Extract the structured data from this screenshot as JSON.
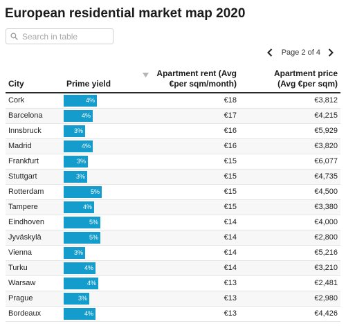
{
  "title": "European residential market map 2020",
  "search": {
    "placeholder": "Search in table",
    "value": ""
  },
  "pager": {
    "label": "Page 2 of 4"
  },
  "columns": {
    "city": "City",
    "yield": "Prime yield",
    "rent_line1": "Apartment rent (Avg",
    "rent_line2": "€per sqm/month)",
    "price_line1": "Apartment price",
    "price_line2": "(Avg €per sqm)"
  },
  "colors": {
    "bar": "#149ccc"
  },
  "rows": [
    {
      "city": "Cork",
      "yield": "4%",
      "yield_value": 4.1,
      "rent": "€18",
      "price": "€3,812"
    },
    {
      "city": "Barcelona",
      "yield": "4%",
      "yield_value": 3.6,
      "rent": "€17",
      "price": "€4,215"
    },
    {
      "city": "Innsbruck",
      "yield": "3%",
      "yield_value": 2.7,
      "rent": "€16",
      "price": "€5,929"
    },
    {
      "city": "Madrid",
      "yield": "4%",
      "yield_value": 3.6,
      "rent": "€16",
      "price": "€3,820"
    },
    {
      "city": "Frankfurt",
      "yield": "3%",
      "yield_value": 3.0,
      "rent": "€15",
      "price": "€6,077"
    },
    {
      "city": "Stuttgart",
      "yield": "3%",
      "yield_value": 2.9,
      "rent": "€15",
      "price": "€4,735"
    },
    {
      "city": "Rotterdam",
      "yield": "5%",
      "yield_value": 4.7,
      "rent": "€15",
      "price": "€4,500"
    },
    {
      "city": "Tampere",
      "yield": "4%",
      "yield_value": 3.8,
      "rent": "€15",
      "price": "€3,380"
    },
    {
      "city": "Eindhoven",
      "yield": "5%",
      "yield_value": 4.6,
      "rent": "€14",
      "price": "€4,000"
    },
    {
      "city": "Jyväskylä",
      "yield": "5%",
      "yield_value": 4.6,
      "rent": "€14",
      "price": "€2,800"
    },
    {
      "city": "Vienna",
      "yield": "3%",
      "yield_value": 2.7,
      "rent": "€14",
      "price": "€5,216"
    },
    {
      "city": "Turku",
      "yield": "4%",
      "yield_value": 4.0,
      "rent": "€14",
      "price": "€3,210"
    },
    {
      "city": "Warsaw",
      "yield": "4%",
      "yield_value": 4.3,
      "rent": "€13",
      "price": "€2,481"
    },
    {
      "city": "Prague",
      "yield": "3%",
      "yield_value": 3.2,
      "rent": "€13",
      "price": "€2,980"
    },
    {
      "city": "Bordeaux",
      "yield": "4%",
      "yield_value": 4.0,
      "rent": "€13",
      "price": "€4,426"
    }
  ]
}
